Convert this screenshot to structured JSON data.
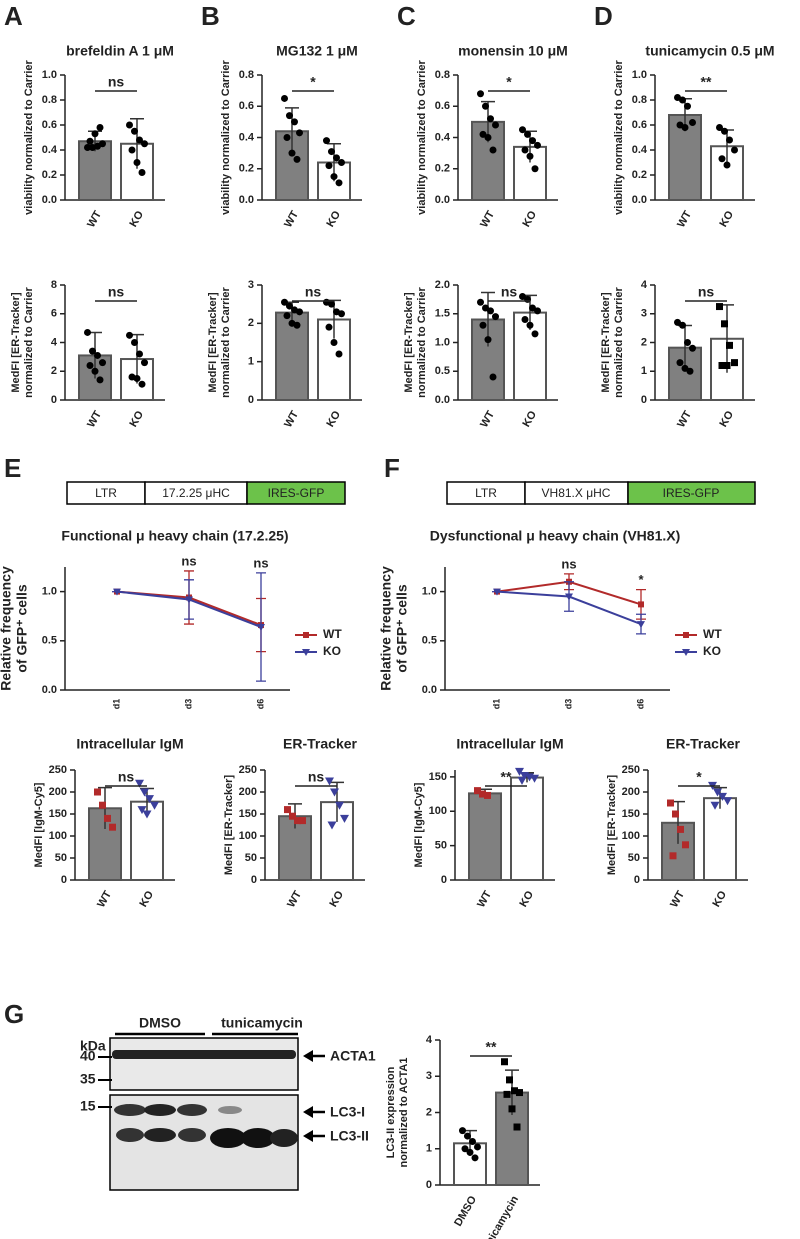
{
  "chart_data": [
    {
      "type": "bar",
      "panel": "A",
      "title": "brefeldin A 1 μM",
      "ylabel": [
        "viability normalized to Carrier"
      ],
      "categories": [
        "WT",
        "KO"
      ],
      "values": [
        0.47,
        0.45
      ],
      "errors": [
        0.08,
        0.2
      ],
      "colors": [
        "#808080",
        "#ffffff"
      ],
      "points": [
        [
          0.42,
          0.42,
          0.43,
          0.45,
          0.47,
          0.53,
          0.58
        ],
        [
          0.6,
          0.55,
          0.48,
          0.45,
          0.4,
          0.3,
          0.22
        ]
      ],
      "point_colors": [
        "#000000",
        "#000000"
      ],
      "point_shapes": [
        "circle",
        "circle"
      ],
      "significance": "ns",
      "ylim": [
        0,
        1
      ],
      "yticks": [
        {
          "value": 0,
          "label": "0.0"
        },
        0.2,
        0.4,
        0.6,
        0.8,
        {
          "value": 1,
          "label": "1.0"
        }
      ]
    },
    {
      "type": "bar",
      "panel": "B",
      "title": "MG132 1 μM",
      "ylabel": [
        "viability normalized to Carrier"
      ],
      "categories": [
        "WT",
        "KO"
      ],
      "values": [
        0.44,
        0.24
      ],
      "errors": [
        0.15,
        0.12
      ],
      "colors": [
        "#808080",
        "#ffffff"
      ],
      "points": [
        [
          0.65,
          0.54,
          0.5,
          0.43,
          0.4,
          0.3,
          0.26
        ],
        [
          0.38,
          0.31,
          0.27,
          0.24,
          0.22,
          0.15,
          0.11
        ]
      ],
      "point_colors": [
        "#000000",
        "#000000"
      ],
      "point_shapes": [
        "circle",
        "circle"
      ],
      "significance": "*",
      "ylim": [
        0,
        0.8
      ],
      "yticks": [
        {
          "value": 0,
          "label": "0.0"
        },
        0.2,
        0.4,
        0.6,
        0.8
      ]
    },
    {
      "type": "bar",
      "panel": "C",
      "title": "monensin 10 μM",
      "ylabel": [
        "viability normalized to Carrier"
      ],
      "categories": [
        "WT",
        "KO"
      ],
      "values": [
        0.5,
        0.34
      ],
      "errors": [
        0.13,
        0.1
      ],
      "colors": [
        "#808080",
        "#ffffff"
      ],
      "points": [
        [
          0.68,
          0.6,
          0.52,
          0.48,
          0.42,
          0.4,
          0.32
        ],
        [
          0.45,
          0.42,
          0.38,
          0.35,
          0.32,
          0.28,
          0.2
        ]
      ],
      "point_colors": [
        "#000000",
        "#000000"
      ],
      "point_shapes": [
        "circle",
        "circle"
      ],
      "significance": "*",
      "ylim": [
        0,
        0.8
      ],
      "yticks": [
        {
          "value": 0,
          "label": "0.0"
        },
        0.2,
        0.4,
        0.6,
        0.8
      ]
    },
    {
      "type": "bar",
      "panel": "D",
      "title": "tunicamycin 0.5 μM",
      "ylabel": [
        "viability normalized to Carrier"
      ],
      "categories": [
        "WT",
        "KO"
      ],
      "values": [
        0.68,
        0.43
      ],
      "errors": [
        0.13,
        0.13
      ],
      "colors": [
        "#808080",
        "#ffffff"
      ],
      "points": [
        [
          0.82,
          0.8,
          0.75,
          0.62,
          0.6,
          0.58
        ],
        [
          0.58,
          0.55,
          0.48,
          0.4,
          0.33,
          0.28
        ]
      ],
      "point_colors": [
        "#000000",
        "#000000"
      ],
      "point_shapes": [
        "circle",
        "circle"
      ],
      "significance": "**",
      "ylim": [
        0,
        1
      ],
      "yticks": [
        {
          "value": 0,
          "label": "0.0"
        },
        0.2,
        0.4,
        0.6,
        0.8,
        {
          "value": 1,
          "label": "1.0"
        }
      ]
    },
    {
      "type": "bar",
      "ylabel": [
        "MedFI [ER-Tracker]",
        "normalized to Carrier"
      ],
      "categories": [
        "WT",
        "KO"
      ],
      "values": [
        3.1,
        2.85
      ],
      "errors": [
        1.6,
        1.7
      ],
      "colors": [
        "#808080",
        "#ffffff"
      ],
      "points": [
        [
          4.7,
          3.4,
          3.1,
          2.6,
          2.4,
          2.0,
          1.4
        ],
        [
          4.5,
          4.0,
          3.2,
          2.6,
          1.6,
          1.5,
          1.1
        ]
      ],
      "point_colors": [
        "#000000",
        "#000000"
      ],
      "point_shapes": [
        "circle",
        "circle"
      ],
      "significance": "ns",
      "ylim": [
        0,
        8
      ],
      "yticks": [
        0,
        2,
        4,
        6,
        8
      ]
    },
    {
      "type": "bar",
      "ylabel": [
        "MedFI [ER-Tracker]",
        "normalized to Carrier"
      ],
      "categories": [
        "WT",
        "KO"
      ],
      "values": [
        2.28,
        2.1
      ],
      "errors": [
        0.27,
        0.5
      ],
      "colors": [
        "#808080",
        "#ffffff"
      ],
      "points": [
        [
          2.55,
          2.45,
          2.35,
          2.3,
          2.2,
          2.0,
          1.95
        ],
        [
          2.55,
          2.5,
          2.3,
          2.25,
          1.9,
          1.5,
          1.2
        ]
      ],
      "point_colors": [
        "#000000",
        "#000000"
      ],
      "point_shapes": [
        "circle",
        "circle"
      ],
      "significance": "ns",
      "ylim": [
        0,
        3
      ],
      "yticks": [
        0,
        1,
        2,
        3
      ]
    },
    {
      "type": "bar",
      "ylabel": [
        "MedFI [ER-Tracker]",
        "normalized to Carrier"
      ],
      "categories": [
        "WT",
        "KO"
      ],
      "values": [
        1.4,
        1.52
      ],
      "errors": [
        0.47,
        0.3
      ],
      "colors": [
        "#808080",
        "#ffffff"
      ],
      "points": [
        [
          1.7,
          1.6,
          1.55,
          1.45,
          1.3,
          1.05,
          0.4
        ],
        [
          1.8,
          1.75,
          1.6,
          1.55,
          1.4,
          1.3,
          1.15
        ]
      ],
      "point_colors": [
        "#000000",
        "#000000"
      ],
      "point_shapes": [
        "circle",
        "circle"
      ],
      "significance": "ns",
      "ylim": [
        0,
        2
      ],
      "yticks": [
        {
          "value": 0,
          "label": "0.0"
        },
        0.5,
        {
          "value": 1,
          "label": "1.0"
        },
        1.5,
        {
          "value": 2,
          "label": "2.0"
        }
      ]
    },
    {
      "type": "bar",
      "ylabel": [
        "MedFI [ER-Tracker]",
        "normalized to Carrier"
      ],
      "categories": [
        "WT",
        "KO"
      ],
      "values": [
        1.82,
        2.13
      ],
      "errors": [
        0.77,
        1.18
      ],
      "colors": [
        "#808080",
        "#ffffff"
      ],
      "points": [
        [
          2.7,
          2.6,
          2.0,
          1.8,
          1.3,
          1.1,
          1.0
        ],
        [
          3.25,
          2.65,
          1.9,
          1.3,
          1.2,
          1.2
        ]
      ],
      "point_colors": [
        "#000000",
        "#000000"
      ],
      "point_shapes": [
        "circle",
        "square"
      ],
      "significance": "ns",
      "ylim": [
        0,
        4
      ],
      "yticks": [
        0,
        1,
        2,
        3,
        4
      ]
    },
    {
      "type": "line",
      "panel": "E",
      "title": "Functional μ heavy chain (17.2.25)",
      "ylabel": [
        "Relative frequency",
        "of GFP⁺ cells"
      ],
      "categories": [
        "d1",
        "d3",
        "d6"
      ],
      "series": [
        {
          "name": "WT",
          "color": "#b22a2a",
          "marker": "square",
          "values": [
            1.0,
            0.94,
            0.66
          ],
          "errors": [
            0,
            0.27,
            0.27
          ]
        },
        {
          "name": "KO",
          "color": "#3b3f9b",
          "marker": "triangle",
          "values": [
            1.0,
            0.92,
            0.64
          ],
          "errors": [
            0,
            0.2,
            0.55
          ]
        }
      ],
      "annotations": [
        {
          "x": "d3",
          "text": "ns"
        },
        {
          "x": "d6",
          "text": "ns"
        }
      ],
      "ylim": [
        0,
        1.25
      ],
      "yticks": [
        {
          "value": 0,
          "label": "0.0"
        },
        0.5,
        {
          "value": 1,
          "label": "1.0"
        }
      ],
      "legend": "right"
    },
    {
      "type": "line",
      "panel": "F",
      "title": "Dysfunctional μ heavy chain (VH81.X)",
      "ylabel": [
        "Relative frequency",
        "of GFP⁺ cells"
      ],
      "categories": [
        "d1",
        "d3",
        "d6"
      ],
      "series": [
        {
          "name": "WT",
          "color": "#b22a2a",
          "marker": "square",
          "values": [
            1.0,
            1.1,
            0.87
          ],
          "errors": [
            0,
            0.08,
            0.15
          ]
        },
        {
          "name": "KO",
          "color": "#3b3f9b",
          "marker": "triangle",
          "values": [
            1.0,
            0.95,
            0.67
          ],
          "errors": [
            0,
            0.15,
            0.1
          ]
        }
      ],
      "annotations": [
        {
          "x": "d3",
          "text": "ns"
        },
        {
          "x": "d6",
          "text": "*"
        }
      ],
      "ylim": [
        0,
        1.25
      ],
      "yticks": [
        {
          "value": 0,
          "label": "0.0"
        },
        0.5,
        {
          "value": 1,
          "label": "1.0"
        }
      ],
      "legend": "right"
    },
    {
      "type": "bar",
      "title": "Intracellular IgM",
      "ylabel": [
        "MedFI [IgM-Cy5]"
      ],
      "categories": [
        "WT",
        "KO"
      ],
      "values": [
        163,
        178
      ],
      "errors": [
        47,
        30
      ],
      "colors": [
        "#808080",
        "#ffffff"
      ],
      "points": [
        [
          200,
          170,
          140,
          120
        ],
        [
          220,
          200,
          185,
          170,
          160,
          150
        ]
      ],
      "point_colors": [
        "#b22a2a",
        "#3b3f9b"
      ],
      "point_shapes": [
        "square",
        "triangle"
      ],
      "significance": "ns",
      "ylim": [
        0,
        250
      ],
      "yticks": [
        0,
        50,
        100,
        150,
        200,
        250
      ]
    },
    {
      "type": "bar",
      "title": "ER-Tracker",
      "ylabel": [
        "MedFI [ER-Tracker]"
      ],
      "categories": [
        "WT",
        "KO"
      ],
      "values": [
        145,
        177
      ],
      "errors": [
        28,
        45
      ],
      "colors": [
        "#808080",
        "#ffffff"
      ],
      "points": [
        [
          160,
          145,
          135,
          135
        ],
        [
          225,
          200,
          170,
          140,
          125
        ]
      ],
      "point_colors": [
        "#b22a2a",
        "#3b3f9b"
      ],
      "point_shapes": [
        "square",
        "triangle"
      ],
      "significance": "ns",
      "ylim": [
        0,
        250
      ],
      "yticks": [
        0,
        50,
        100,
        150,
        200,
        250
      ]
    },
    {
      "type": "bar",
      "title": "Intracellular IgM",
      "ylabel": [
        "MedFI [IgM-Cy5]"
      ],
      "categories": [
        "WT",
        "KO"
      ],
      "values": [
        126,
        149
      ],
      "errors": [
        6,
        7
      ],
      "colors": [
        "#808080",
        "#ffffff"
      ],
      "points": [
        [
          130,
          125,
          123
        ],
        [
          158,
          152,
          150,
          148,
          145
        ]
      ],
      "point_colors": [
        "#b22a2a",
        "#3b3f9b"
      ],
      "point_shapes": [
        "square",
        "triangle"
      ],
      "significance": "**",
      "ylim": [
        0,
        160
      ],
      "yticks": [
        0,
        50,
        100,
        150
      ]
    },
    {
      "type": "bar",
      "title": "ER-Tracker",
      "ylabel": [
        "MedFI [ER-Tracker]"
      ],
      "categories": [
        "WT",
        "KO"
      ],
      "values": [
        130,
        186
      ],
      "errors": [
        48,
        24
      ],
      "colors": [
        "#808080",
        "#ffffff"
      ],
      "points": [
        [
          175,
          150,
          115,
          80,
          55
        ],
        [
          215,
          200,
          190,
          180,
          170
        ]
      ],
      "point_colors": [
        "#b22a2a",
        "#3b3f9b"
      ],
      "point_shapes": [
        "square",
        "triangle"
      ],
      "significance": "*",
      "ylim": [
        0,
        250
      ],
      "yticks": [
        0,
        50,
        100,
        150,
        200,
        250
      ]
    },
    {
      "type": "bar",
      "ylabel": [
        "LC3-II expression",
        "normalized to ACTA1"
      ],
      "categories": [
        "DMSO",
        "tunicamycin"
      ],
      "values": [
        1.15,
        2.55
      ],
      "errors": [
        0.35,
        0.62
      ],
      "colors": [
        "#ffffff",
        "#808080"
      ],
      "points": [
        [
          1.5,
          1.35,
          1.2,
          1.05,
          1.0,
          0.9,
          0.75
        ],
        [
          3.4,
          2.9,
          2.6,
          2.55,
          2.5,
          2.1,
          1.6
        ]
      ],
      "point_colors": [
        "#000000",
        "#000000"
      ],
      "point_shapes": [
        "circle",
        "square"
      ],
      "significance": "**",
      "ylim": [
        0,
        4
      ],
      "yticks": [
        0,
        1,
        2,
        3,
        4
      ]
    }
  ],
  "constructs": [
    [
      "LTR",
      "17.2.25 μHC",
      "IRES-GFP"
    ],
    [
      "LTR",
      "VH81.X μHC",
      "IRES-GFP"
    ]
  ],
  "blot": {
    "panel": "G",
    "unit": "kDa",
    "groups": [
      "DMSO",
      "tunicamycin"
    ],
    "markers": [
      40,
      35,
      15
    ],
    "bands": [
      "ACTA1",
      "LC3-I",
      "LC3-II"
    ]
  }
}
